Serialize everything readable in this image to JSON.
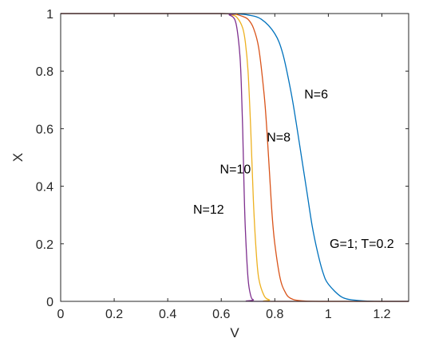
{
  "chart_data": {
    "type": "line",
    "title": "",
    "xlabel": "V",
    "ylabel": "X",
    "xlim": [
      0,
      1.3
    ],
    "ylim": [
      0,
      1
    ],
    "xticks": [
      0,
      0.2,
      0.4,
      0.6,
      0.8,
      1,
      1.2
    ],
    "xtick_labels": [
      "0",
      "0.2",
      "0.4",
      "0.6",
      "0.8",
      "1",
      "1.2"
    ],
    "yticks": [
      0,
      0.2,
      0.4,
      0.6,
      0.8,
      1
    ],
    "ytick_labels": [
      "0",
      "0.2",
      "0.4",
      "0.6",
      "0.8",
      "1"
    ],
    "grid": false,
    "legend": "none",
    "series": [
      {
        "label": "N=6",
        "color": "#0072BD",
        "x": [
          0,
          0.5,
          0.6,
          0.65,
          0.7,
          0.75,
          0.8,
          0.83,
          0.86,
          0.88,
          0.9,
          0.92,
          0.94,
          0.96,
          0.98,
          1.0,
          1.05,
          1.1,
          1.15,
          1.2,
          1.3
        ],
        "y": [
          1,
          1,
          1,
          0.999,
          0.995,
          0.98,
          0.93,
          0.86,
          0.73,
          0.62,
          0.5,
          0.38,
          0.26,
          0.17,
          0.1,
          0.06,
          0.015,
          0.004,
          0.001,
          0,
          0
        ]
      },
      {
        "label": "N=8",
        "color": "#D95319",
        "x": [
          0,
          0.6,
          0.65,
          0.68,
          0.7,
          0.72,
          0.74,
          0.76,
          0.77,
          0.78,
          0.79,
          0.8,
          0.82,
          0.84,
          0.86,
          0.9,
          1.0,
          1.3
        ],
        "y": [
          1,
          1,
          0.998,
          0.99,
          0.98,
          0.95,
          0.88,
          0.72,
          0.6,
          0.45,
          0.3,
          0.2,
          0.08,
          0.03,
          0.01,
          0.002,
          0,
          0
        ]
      },
      {
        "label": "N=10",
        "color": "#EDB120",
        "x": [
          0,
          0.6,
          0.64,
          0.66,
          0.68,
          0.69,
          0.7,
          0.71,
          0.72,
          0.73,
          0.74,
          0.76,
          0.78,
          0.8,
          1.3
        ],
        "y": [
          1,
          1,
          0.995,
          0.985,
          0.95,
          0.9,
          0.8,
          0.6,
          0.35,
          0.18,
          0.08,
          0.02,
          0.005,
          0,
          0
        ]
      },
      {
        "label": "N=12",
        "color": "#7E2F8E",
        "x": [
          0,
          0.6,
          0.63,
          0.65,
          0.66,
          0.67,
          0.675,
          0.68,
          0.685,
          0.69,
          0.7,
          0.71,
          0.72,
          0.74,
          1.3
        ],
        "y": [
          1,
          1,
          0.995,
          0.98,
          0.94,
          0.85,
          0.75,
          0.6,
          0.4,
          0.25,
          0.08,
          0.02,
          0.005,
          0,
          0
        ]
      }
    ],
    "annotations": [
      {
        "text": "N=6",
        "x": 0.91,
        "y": 0.705
      },
      {
        "text": "N=8",
        "x": 0.77,
        "y": 0.555
      },
      {
        "text": "N=10",
        "x": 0.595,
        "y": 0.445
      },
      {
        "text": "N=12",
        "x": 0.495,
        "y": 0.305
      },
      {
        "text": "G=1; T=0.2",
        "x": 1.005,
        "y": 0.185
      }
    ]
  }
}
